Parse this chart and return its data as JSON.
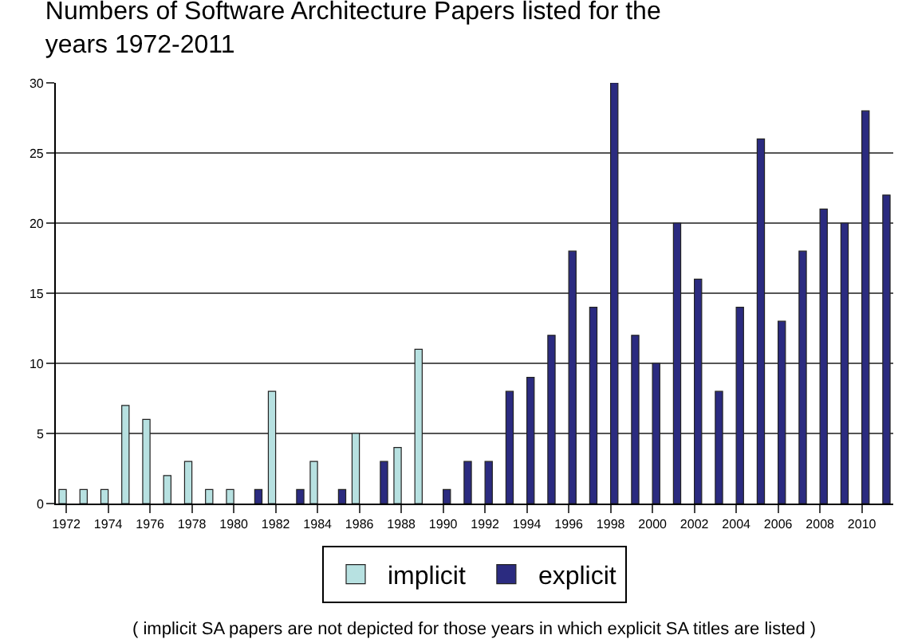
{
  "chart_data": {
    "type": "bar",
    "title": "Numbers of Software Architecture Papers listed for the years 1972-2011",
    "categories": [
      "1972",
      null,
      "1974",
      null,
      "1976",
      null,
      "1978",
      null,
      "1980",
      null,
      "1982",
      null,
      "1984",
      null,
      "1986",
      null,
      "1988",
      null,
      "1990",
      null,
      "1992",
      null,
      "1994",
      null,
      "1996",
      null,
      "1998",
      null,
      "2000",
      null,
      "2002",
      null,
      "2004",
      null,
      "2006",
      null,
      "2008",
      null,
      "2010",
      null
    ],
    "series": [
      {
        "name": "implicit",
        "color": "#b7e1e1",
        "values": [
          1,
          1,
          1,
          7,
          6,
          2,
          3,
          1,
          1,
          null,
          8,
          null,
          3,
          null,
          5,
          null,
          4,
          11,
          null,
          null,
          null,
          null,
          null,
          null,
          null,
          null,
          null,
          null,
          null,
          null,
          null,
          null,
          null,
          null,
          null,
          null,
          null,
          null,
          null,
          null
        ]
      },
      {
        "name": "explicit",
        "color": "#2b2b80",
        "values": [
          null,
          null,
          null,
          null,
          null,
          null,
          null,
          null,
          null,
          1,
          null,
          1,
          null,
          1,
          null,
          3,
          null,
          null,
          1,
          3,
          3,
          8,
          9,
          12,
          18,
          14,
          30,
          12,
          10,
          20,
          16,
          8,
          14,
          26,
          13,
          18,
          21,
          20,
          28,
          22
        ]
      }
    ],
    "ylim": [
      0,
      30
    ],
    "yticks": [
      0,
      5,
      10,
      15,
      20,
      25,
      30
    ],
    "grid": "y",
    "legend": "bottom",
    "annotations": [
      "( implicit SA papers are not depicted for those years in which explicit SA titles are listed )"
    ]
  }
}
